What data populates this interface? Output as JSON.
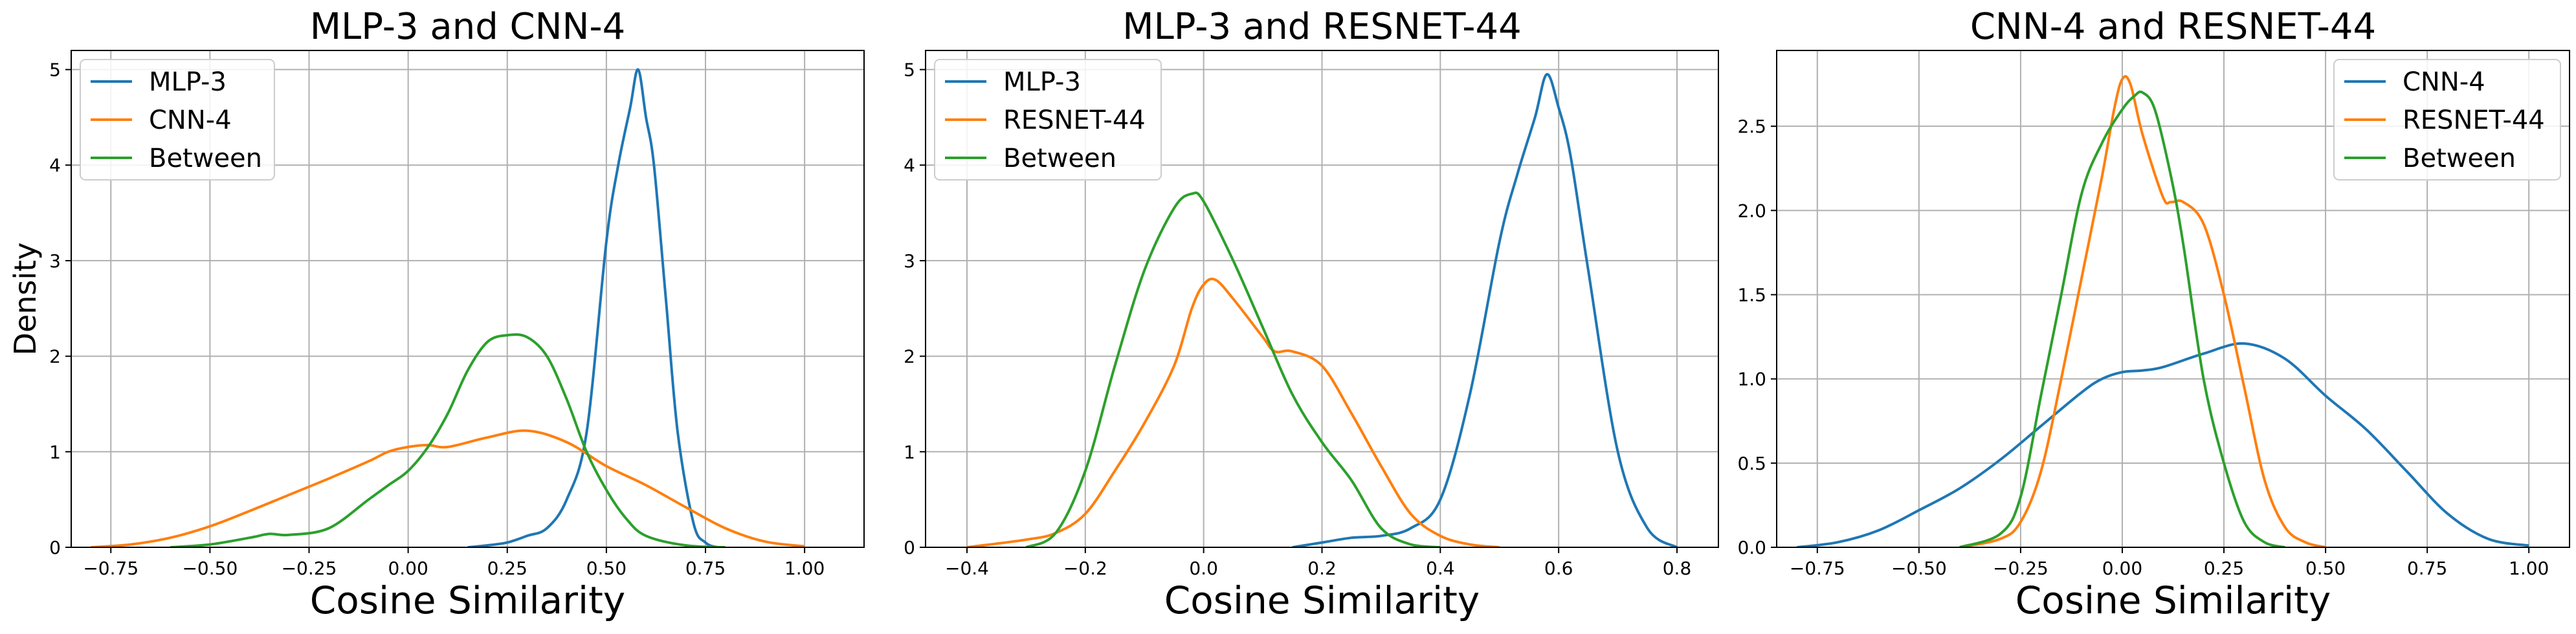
{
  "figure": {
    "ylabel": "Density",
    "colors": {
      "blue": "#1f77b4",
      "orange": "#ff7f0e",
      "green": "#2ca02c",
      "grid": "#b0b0b0"
    }
  },
  "chart_data": [
    {
      "type": "line",
      "title": "MLP-3 and CNN-4",
      "xlabel": "Cosine Similarity",
      "ylabel": "Density",
      "xlim": [
        -0.85,
        1.15
      ],
      "ylim": [
        0,
        5.2
      ],
      "xticks": [
        -0.75,
        -0.5,
        -0.25,
        0.0,
        0.25,
        0.5,
        0.75,
        1.0
      ],
      "xtick_labels": [
        "−0.75",
        "−0.50",
        "−0.25",
        "0.00",
        "0.25",
        "0.50",
        "0.75",
        "1.00"
      ],
      "yticks": [
        0,
        1,
        2,
        3,
        4,
        5
      ],
      "ytick_labels": [
        "0",
        "1",
        "2",
        "3",
        "4",
        "5"
      ],
      "grid": true,
      "legend": "top-left",
      "series": [
        {
          "name": "MLP-3",
          "color": "#1f77b4",
          "x": [
            0.15,
            0.2,
            0.25,
            0.3,
            0.35,
            0.4,
            0.45,
            0.5,
            0.53,
            0.56,
            0.58,
            0.6,
            0.62,
            0.65,
            0.68,
            0.72,
            0.75,
            0.78
          ],
          "y": [
            0,
            0.02,
            0.05,
            0.12,
            0.2,
            0.5,
            1.2,
            3.2,
            4.0,
            4.6,
            5.0,
            4.5,
            4.0,
            2.6,
            1.2,
            0.25,
            0.05,
            0
          ]
        },
        {
          "name": "CNN-4",
          "color": "#ff7f0e",
          "x": [
            -0.8,
            -0.7,
            -0.6,
            -0.5,
            -0.4,
            -0.3,
            -0.2,
            -0.1,
            -0.05,
            0.0,
            0.05,
            0.1,
            0.2,
            0.3,
            0.4,
            0.5,
            0.6,
            0.7,
            0.8,
            0.9,
            1.0
          ],
          "y": [
            0,
            0.03,
            0.1,
            0.22,
            0.38,
            0.55,
            0.72,
            0.9,
            1.0,
            1.05,
            1.07,
            1.05,
            1.15,
            1.22,
            1.1,
            0.85,
            0.65,
            0.42,
            0.2,
            0.06,
            0.01
          ]
        },
        {
          "name": "Between",
          "color": "#2ca02c",
          "x": [
            -0.6,
            -0.5,
            -0.4,
            -0.35,
            -0.3,
            -0.2,
            -0.1,
            -0.05,
            0.0,
            0.05,
            0.1,
            0.15,
            0.2,
            0.25,
            0.3,
            0.35,
            0.4,
            0.45,
            0.5,
            0.55,
            0.6,
            0.7,
            0.8
          ],
          "y": [
            0,
            0.03,
            0.1,
            0.14,
            0.13,
            0.2,
            0.5,
            0.65,
            0.8,
            1.05,
            1.4,
            1.85,
            2.15,
            2.22,
            2.2,
            2.0,
            1.55,
            1.0,
            0.6,
            0.3,
            0.12,
            0.02,
            0
          ]
        }
      ]
    },
    {
      "type": "line",
      "title": "MLP-3 and RESNET-44",
      "xlabel": "Cosine Similarity",
      "ylabel": "",
      "xlim": [
        -0.47,
        0.87
      ],
      "ylim": [
        0,
        5.2
      ],
      "xticks": [
        -0.4,
        -0.2,
        0.0,
        0.2,
        0.4,
        0.6,
        0.8
      ],
      "xtick_labels": [
        "−0.4",
        "−0.2",
        "0.0",
        "0.2",
        "0.4",
        "0.6",
        "0.8"
      ],
      "yticks": [
        0,
        1,
        2,
        3,
        4,
        5
      ],
      "ytick_labels": [
        "0",
        "1",
        "2",
        "3",
        "4",
        "5"
      ],
      "grid": true,
      "legend": "top-left",
      "series": [
        {
          "name": "MLP-3",
          "color": "#1f77b4",
          "x": [
            0.15,
            0.2,
            0.25,
            0.3,
            0.35,
            0.4,
            0.45,
            0.5,
            0.53,
            0.56,
            0.58,
            0.6,
            0.62,
            0.65,
            0.7,
            0.75,
            0.8
          ],
          "y": [
            0,
            0.05,
            0.1,
            0.12,
            0.2,
            0.5,
            1.6,
            3.2,
            3.9,
            4.5,
            4.95,
            4.6,
            4.1,
            2.9,
            1.0,
            0.2,
            0
          ]
        },
        {
          "name": "RESNET-44",
          "color": "#ff7f0e",
          "x": [
            -0.4,
            -0.3,
            -0.25,
            -0.2,
            -0.15,
            -0.1,
            -0.05,
            -0.02,
            0.0,
            0.02,
            0.05,
            0.1,
            0.12,
            0.15,
            0.2,
            0.25,
            0.3,
            0.35,
            0.4,
            0.45,
            0.5
          ],
          "y": [
            0,
            0.08,
            0.15,
            0.35,
            0.8,
            1.3,
            1.9,
            2.5,
            2.75,
            2.8,
            2.6,
            2.2,
            2.05,
            2.05,
            1.9,
            1.4,
            0.85,
            0.35,
            0.12,
            0.03,
            0
          ]
        },
        {
          "name": "Between",
          "color": "#2ca02c",
          "x": [
            -0.3,
            -0.25,
            -0.2,
            -0.15,
            -0.1,
            -0.05,
            -0.02,
            0.0,
            0.05,
            0.1,
            0.15,
            0.2,
            0.25,
            0.3,
            0.35,
            0.4
          ],
          "y": [
            0,
            0.15,
            0.8,
            1.9,
            2.9,
            3.55,
            3.7,
            3.62,
            3.0,
            2.3,
            1.6,
            1.1,
            0.7,
            0.2,
            0.03,
            0
          ]
        }
      ]
    },
    {
      "type": "line",
      "title": "CNN-4 and RESNET-44",
      "xlabel": "Cosine Similarity",
      "ylabel": "",
      "xlim": [
        -0.85,
        1.1
      ],
      "ylim": [
        0,
        2.95
      ],
      "xticks": [
        -0.75,
        -0.5,
        -0.25,
        0.0,
        0.25,
        0.5,
        0.75,
        1.0
      ],
      "xtick_labels": [
        "−0.75",
        "−0.50",
        "−0.25",
        "0.00",
        "0.25",
        "0.50",
        "0.75",
        "1.00"
      ],
      "yticks": [
        0,
        0.5,
        1.0,
        1.5,
        2.0,
        2.5
      ],
      "ytick_labels": [
        "0.0",
        "0.5",
        "1.0",
        "1.5",
        "2.0",
        "2.5"
      ],
      "grid": true,
      "legend": "top-right",
      "series": [
        {
          "name": "CNN-4",
          "color": "#1f77b4",
          "x": [
            -0.8,
            -0.7,
            -0.6,
            -0.5,
            -0.4,
            -0.3,
            -0.2,
            -0.1,
            -0.05,
            0.0,
            0.05,
            0.1,
            0.2,
            0.3,
            0.4,
            0.5,
            0.6,
            0.7,
            0.8,
            0.9,
            1.0
          ],
          "y": [
            0,
            0.03,
            0.1,
            0.22,
            0.35,
            0.52,
            0.72,
            0.92,
            1.0,
            1.04,
            1.05,
            1.07,
            1.15,
            1.21,
            1.12,
            0.9,
            0.7,
            0.45,
            0.2,
            0.05,
            0.01
          ]
        },
        {
          "name": "RESNET-44",
          "color": "#ff7f0e",
          "x": [
            -0.4,
            -0.3,
            -0.25,
            -0.2,
            -0.15,
            -0.1,
            -0.05,
            -0.02,
            0.0,
            0.02,
            0.05,
            0.1,
            0.12,
            0.15,
            0.2,
            0.25,
            0.3,
            0.35,
            0.4,
            0.45,
            0.5
          ],
          "y": [
            0,
            0.05,
            0.15,
            0.45,
            1.0,
            1.6,
            2.2,
            2.6,
            2.78,
            2.75,
            2.45,
            2.08,
            2.05,
            2.05,
            1.92,
            1.5,
            0.95,
            0.4,
            0.12,
            0.03,
            0
          ]
        },
        {
          "name": "Between",
          "color": "#2ca02c",
          "x": [
            -0.4,
            -0.3,
            -0.25,
            -0.2,
            -0.15,
            -0.1,
            -0.05,
            0.0,
            0.03,
            0.05,
            0.08,
            0.12,
            0.15,
            0.2,
            0.25,
            0.3,
            0.35,
            0.4
          ],
          "y": [
            0,
            0.08,
            0.3,
            0.9,
            1.5,
            2.1,
            2.4,
            2.6,
            2.68,
            2.7,
            2.6,
            2.2,
            1.8,
            1.0,
            0.5,
            0.15,
            0.03,
            0
          ]
        }
      ]
    }
  ]
}
